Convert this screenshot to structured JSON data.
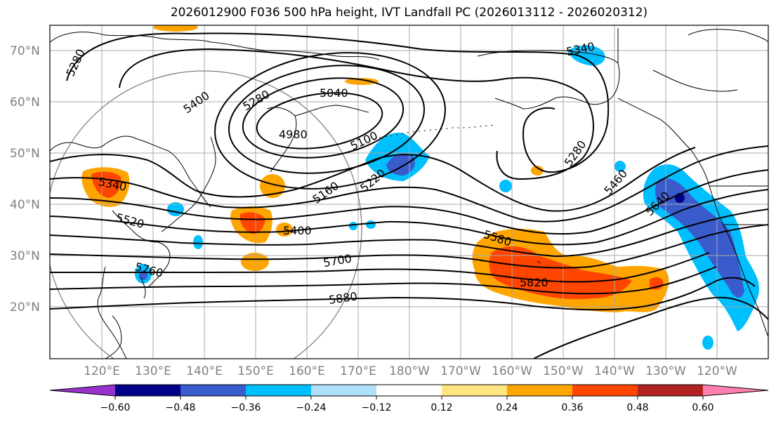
{
  "title": "2026012900 F036 500 hPa height, IVT Landfall PC (2026013112 - 2026020312)",
  "latitude_labels": [
    "70°N",
    "60°N",
    "50°N",
    "40°N",
    "30°N",
    "20°N"
  ],
  "longitude_labels": [
    "120°E",
    "130°E",
    "140°E",
    "150°E",
    "160°E",
    "170°E",
    "180°W",
    "170°W",
    "160°W",
    "150°W",
    "140°W",
    "130°W",
    "120°W"
  ],
  "contour_labels": [
    "5280",
    "5400",
    "5280",
    "5040",
    "4980",
    "5100",
    "5160",
    "5220",
    "5340",
    "5520",
    "5400",
    "5700",
    "5760",
    "5880",
    "5580",
    "5820",
    "5280",
    "5460",
    "5640",
    "5340"
  ],
  "colorbar": {
    "ticks": [
      "−0.60",
      "−0.48",
      "−0.36",
      "−0.24",
      "−0.12",
      "0.12",
      "0.24",
      "0.36",
      "0.48",
      "0.60"
    ],
    "colors": [
      "#9932cc",
      "#00008b",
      "#3a5bcc",
      "#00bfff",
      "#b0e0fa",
      "#ffffff",
      "#ffe680",
      "#ffa500",
      "#ff4500",
      "#b22222",
      "#ff80b0"
    ]
  },
  "colors": {
    "grid": "#a9a9a9",
    "contour": "#000000",
    "coastline": "#000000"
  }
}
